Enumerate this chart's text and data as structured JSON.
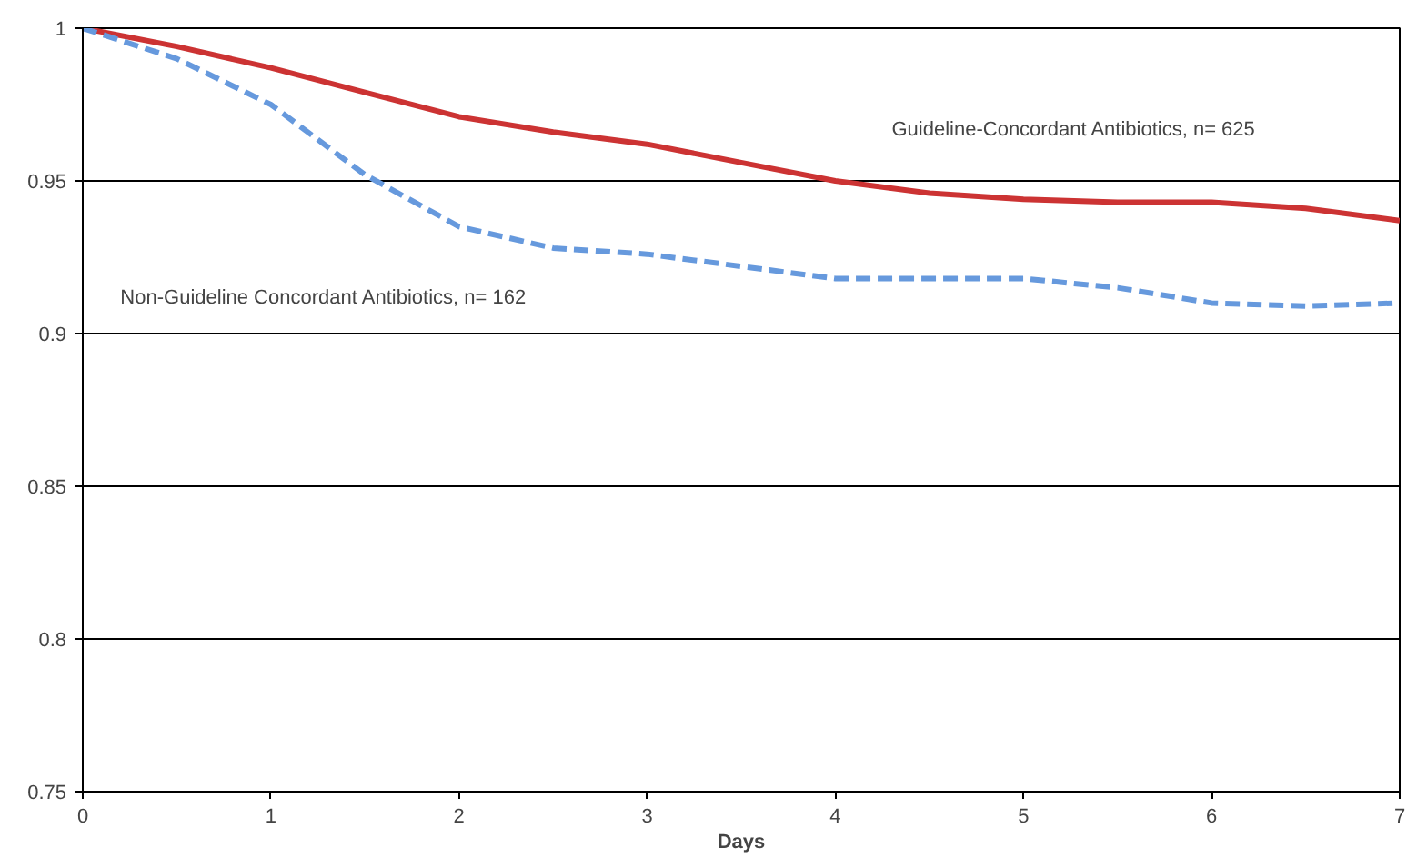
{
  "chart_data": {
    "type": "line",
    "xlabel": "Days",
    "xlim": [
      0,
      7
    ],
    "xticks": [
      0,
      1,
      2,
      3,
      4,
      5,
      6,
      7
    ],
    "ylim": [
      0.75,
      1
    ],
    "yticks": [
      0.75,
      0.8,
      0.85,
      0.9,
      0.95,
      1
    ],
    "grid": "y",
    "series": [
      {
        "name": "Guideline-Concordant Antibiotics, n= 625",
        "color": "#cc3333",
        "line_style": "solid",
        "x": [
          0,
          0.5,
          1,
          1.5,
          2,
          2.5,
          3,
          3.5,
          4,
          4.5,
          5,
          5.5,
          6,
          6.5,
          7
        ],
        "values": [
          1.0,
          0.994,
          0.987,
          0.979,
          0.971,
          0.966,
          0.962,
          0.956,
          0.95,
          0.946,
          0.944,
          0.943,
          0.943,
          0.941,
          0.937
        ]
      },
      {
        "name": "Non-Guideline Concordant Antibiotics, n= 162",
        "color": "#6699dd",
        "line_style": "dashed",
        "x": [
          0,
          0.5,
          1,
          1.5,
          2,
          2.5,
          3,
          3.5,
          4,
          4.5,
          5,
          5.5,
          6,
          6.5,
          7
        ],
        "values": [
          1.0,
          0.99,
          0.975,
          0.952,
          0.935,
          0.928,
          0.926,
          0.922,
          0.918,
          0.918,
          0.918,
          0.915,
          0.91,
          0.909,
          0.91
        ]
      }
    ]
  }
}
